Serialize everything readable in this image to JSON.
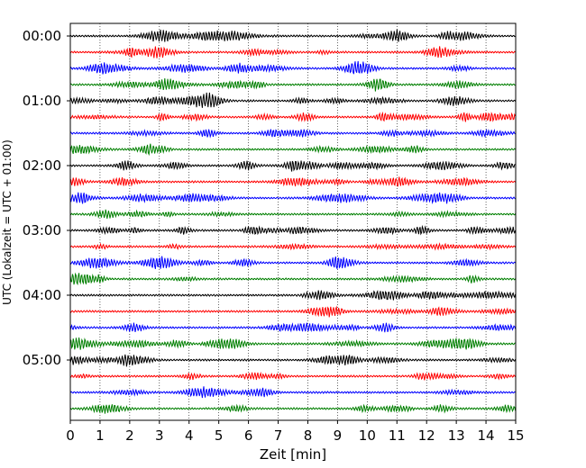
{
  "chart_data": {
    "type": "line",
    "title": "",
    "xlabel": "Zeit  [min]",
    "ylabel": "UTC (Lokalzeit = UTC + 01:00)",
    "xlim": [
      0,
      15
    ],
    "x_ticks": [
      "0",
      "1",
      "2",
      "3",
      "4",
      "5",
      "6",
      "7",
      "8",
      "9",
      "10",
      "11",
      "12",
      "13",
      "14",
      "15"
    ],
    "y_tick_labels": [
      "00:00",
      "01:00",
      "02:00",
      "03:00",
      "04:00",
      "05:00"
    ],
    "trace_interval_minutes": 15,
    "trace_count": 24,
    "trace_colors": [
      "#000000",
      "#ff0000",
      "#0000ff",
      "#007f00"
    ],
    "grid": "vertical dotted at each minute"
  }
}
